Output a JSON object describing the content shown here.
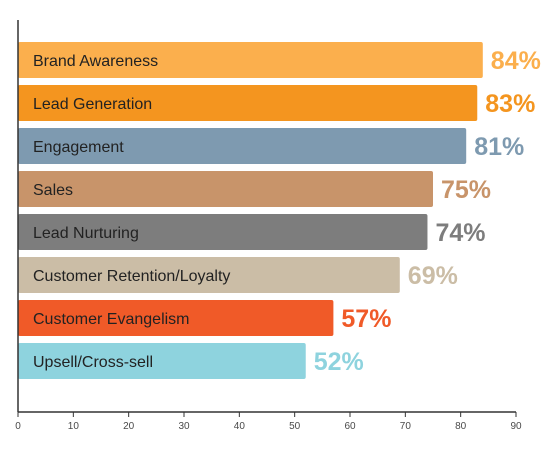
{
  "chart_data": {
    "type": "bar",
    "orientation": "horizontal",
    "categories": [
      "Brand Awareness",
      "Lead Generation",
      "Engagement",
      "Sales",
      "Lead Nurturing",
      "Customer Retention/Loyalty",
      "Customer Evangelism",
      "Upsell/Cross-sell"
    ],
    "values": [
      84,
      83,
      81,
      75,
      74,
      69,
      57,
      52
    ],
    "value_labels": [
      "84%",
      "83%",
      "81%",
      "75%",
      "74%",
      "69%",
      "57%",
      "52%"
    ],
    "colors": [
      "#FBAF4D",
      "#F4951F",
      "#7E9AB0",
      "#C8946A",
      "#7D7D7D",
      "#CBBDA6",
      "#F05A28",
      "#8ED3DE"
    ],
    "xlim": [
      0,
      90
    ],
    "xticks": [
      0,
      10,
      20,
      30,
      40,
      50,
      60,
      70,
      80,
      90
    ],
    "xtick_labels": [
      "0",
      "10",
      "20",
      "30",
      "40",
      "50",
      "60",
      "70",
      "80",
      "90"
    ],
    "title": "",
    "xlabel": "",
    "ylabel": "",
    "grid": false,
    "legend": "none"
  }
}
